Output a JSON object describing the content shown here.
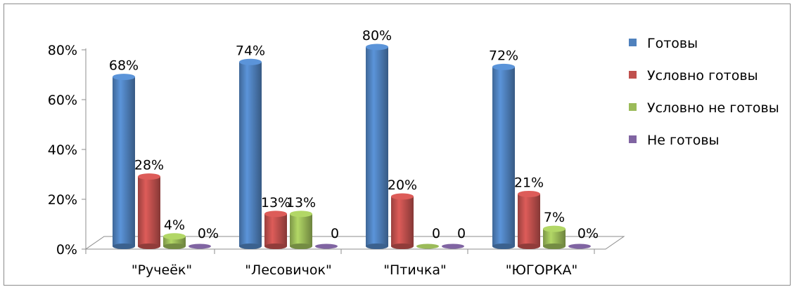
{
  "chart_data": {
    "type": "bar",
    "categories": [
      "\"Ручеёк\"",
      "\"Лесовичок\"",
      "\"Птичка\"",
      "\"ЮГОРКА\""
    ],
    "series": [
      {
        "name": "Готовы",
        "color": "#4f81bd",
        "values": [
          68,
          74,
          80,
          72
        ],
        "labels": [
          "68%",
          "74%",
          "80%",
          "72%"
        ]
      },
      {
        "name": "Условно готовы",
        "color": "#c0504d",
        "values": [
          28,
          13,
          20,
          21
        ],
        "labels": [
          "28%",
          "13%",
          "20%",
          "21%"
        ]
      },
      {
        "name": "Условно не готовы",
        "color": "#9bbb59",
        "values": [
          4,
          13,
          0,
          7
        ],
        "labels": [
          "4%",
          "13%",
          "0",
          "7%"
        ]
      },
      {
        "name": "Не готовы",
        "color": "#8064a2",
        "values": [
          0,
          0,
          0,
          0
        ],
        "labels": [
          "0%",
          "0",
          "0",
          "0%"
        ]
      }
    ],
    "yticks": [
      "0%",
      "20%",
      "40%",
      "60%",
      "80%"
    ],
    "ylim": [
      0,
      80
    ],
    "legend_position": "right",
    "grid": false
  }
}
